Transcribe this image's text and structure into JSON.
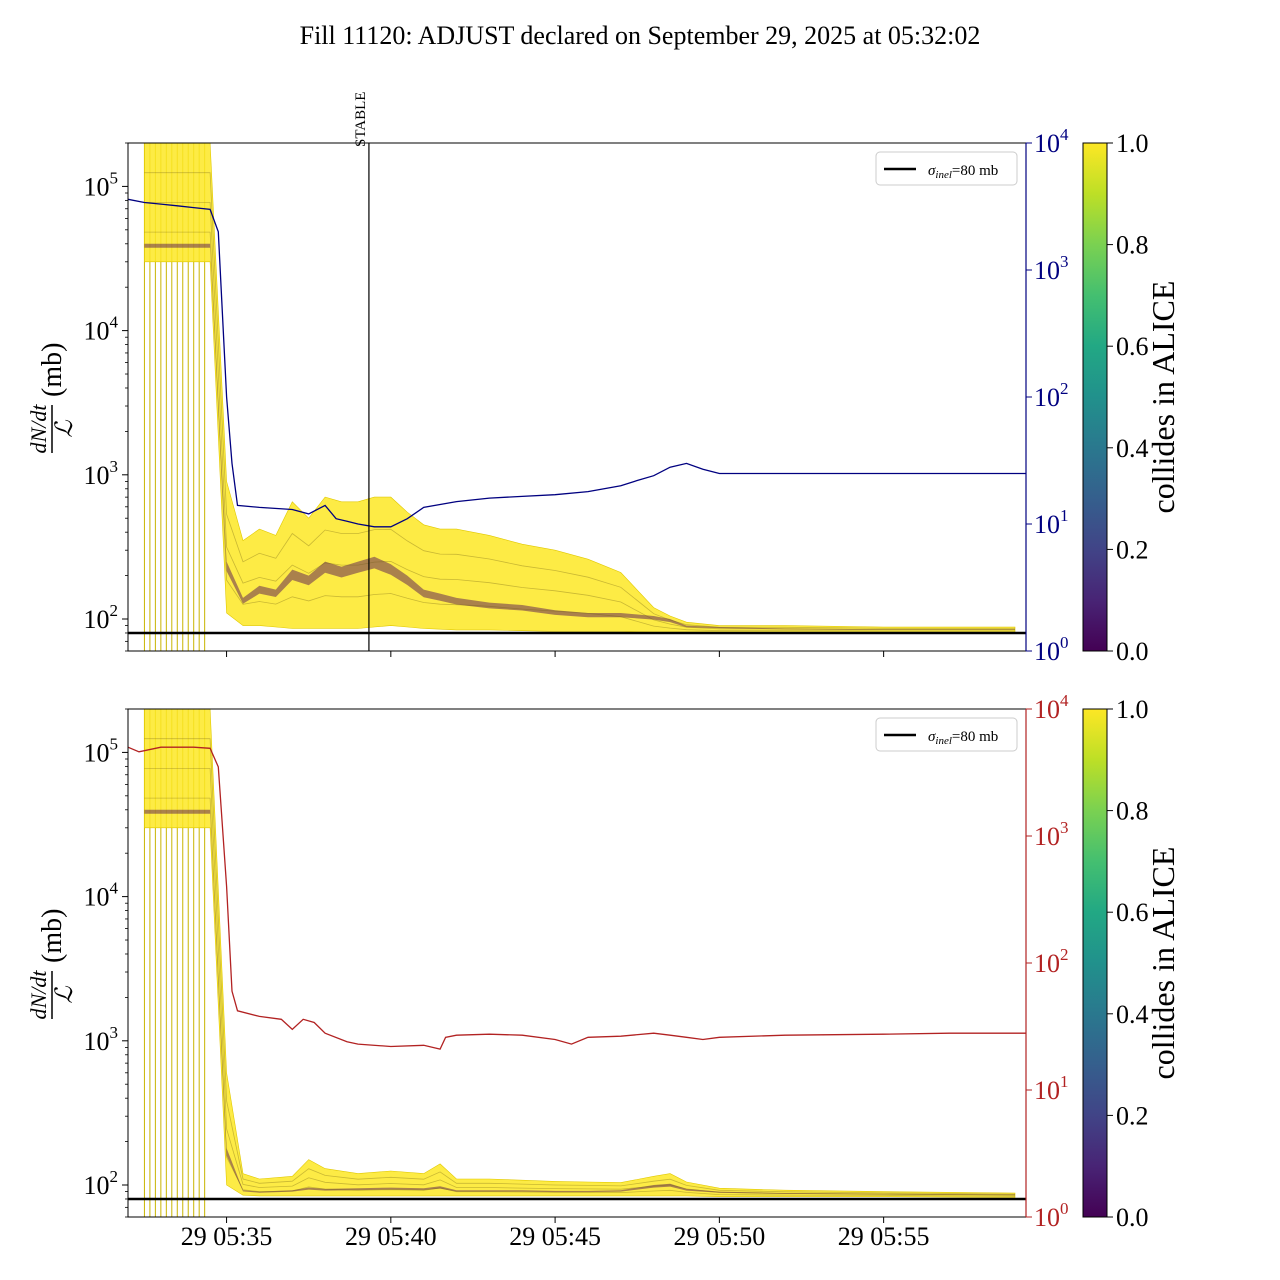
{
  "title": "Fill 11120: ADJUST declared on September 29, 2025 at 05:32:02",
  "colors": {
    "left_series_top": "#000080",
    "left_series_bottom": "#b22222",
    "sigma_line": "#000000",
    "band_high": "#fde725",
    "band_low": "#440154"
  },
  "chart_data": [
    {
      "type": "line",
      "panel": "top",
      "ylabel_left": "dN/dt / ℒ (mb)",
      "ylabel_left_parts": {
        "numerator": "dN/dt",
        "denominator": "ℒ",
        "unit": "(mb)"
      },
      "y_left": {
        "scale": "log",
        "range": [
          60,
          200000
        ],
        "ticks": [
          "10^2",
          "10^3",
          "10^4",
          "10^5"
        ]
      },
      "y_right": {
        "scale": "log",
        "range": [
          1,
          10000
        ],
        "ticks": [
          "10^0",
          "10^1",
          "10^2",
          "10^3",
          "10^4"
        ],
        "color": "#000080"
      },
      "x_range": [
        "05:32:00",
        "05:59:20"
      ],
      "x_ticks": [
        "29 05:35",
        "29 05:40",
        "29 05:45",
        "29 05:50",
        "29 05:55"
      ],
      "x_ticks_visible": false,
      "legend": {
        "position": "top-right",
        "entries": [
          {
            "label": "σinel=80 mb",
            "label_sigma": "σ",
            "label_sub": "inel",
            "label_rest": "=80 mb"
          }
        ]
      },
      "horizontal_line": {
        "label": "σinel=80 mb",
        "y": 80
      },
      "vertical_marker": {
        "label": "STABLE",
        "x": "05:39:20"
      },
      "band": {
        "description": "per-bunch dN/dt/L curves colored by collides in ALICE",
        "x": [
          "05:32:30",
          "05:34:30",
          "05:35:00",
          "05:35:30",
          "05:36:00",
          "05:36:30",
          "05:37:00",
          "05:37:30",
          "05:38:00",
          "05:38:30",
          "05:39:00",
          "05:39:30",
          "05:40:00",
          "05:40:30",
          "05:41:00",
          "05:41:30",
          "05:42:00",
          "05:43:00",
          "05:44:00",
          "05:45:00",
          "05:46:00",
          "05:47:00",
          "05:48:00",
          "05:48:30",
          "05:49:00",
          "05:50:00",
          "05:52:00",
          "05:55:00",
          "05:59:00"
        ],
        "upper": [
          200000,
          200000,
          900,
          350,
          420,
          380,
          650,
          500,
          700,
          650,
          650,
          700,
          700,
          550,
          450,
          420,
          420,
          380,
          330,
          300,
          260,
          210,
          120,
          105,
          95,
          90,
          90,
          88,
          88
        ],
        "lower": [
          30000,
          30000,
          110,
          90,
          90,
          88,
          86,
          86,
          86,
          86,
          86,
          88,
          90,
          88,
          86,
          85,
          84,
          84,
          83,
          82,
          82,
          82,
          81,
          81,
          81,
          81,
          81,
          81,
          81
        ],
        "dark_center": [
          40000,
          40000,
          250,
          140,
          170,
          160,
          220,
          200,
          250,
          230,
          250,
          270,
          240,
          200,
          160,
          150,
          140,
          130,
          125,
          115,
          110,
          110,
          105,
          100,
          90,
          88,
          86,
          85,
          85
        ]
      },
      "colorbar": {
        "label": "collides in ALICE",
        "range": [
          0.0,
          1.0
        ],
        "ticks": [
          "0.0",
          "0.2",
          "0.4",
          "0.6",
          "0.8",
          "1.0"
        ]
      },
      "series": [
        {
          "axis": "right",
          "color": "#000080",
          "x": [
            "05:32:00",
            "05:32:30",
            "05:33:00",
            "05:33:30",
            "05:34:00",
            "05:34:30",
            "05:34:45",
            "05:35:00",
            "05:35:10",
            "05:35:20",
            "05:36:00",
            "05:37:00",
            "05:37:30",
            "05:38:00",
            "05:38:20",
            "05:38:40",
            "05:39:00",
            "05:39:30",
            "05:40:00",
            "05:40:30",
            "05:41:00",
            "05:42:00",
            "05:43:00",
            "05:44:00",
            "05:45:00",
            "05:46:00",
            "05:47:00",
            "05:47:30",
            "05:48:00",
            "05:48:30",
            "05:49:00",
            "05:49:30",
            "05:50:00",
            "05:51:00",
            "05:53:00",
            "05:55:00",
            "05:57:00",
            "05:59:20"
          ],
          "y": [
            3600,
            3400,
            3300,
            3200,
            3100,
            3000,
            2000,
            100,
            30,
            14,
            13.5,
            13,
            12,
            14,
            11,
            10.5,
            10,
            9.5,
            9.5,
            11,
            13.5,
            15,
            16,
            16.5,
            17,
            18,
            20,
            22,
            24,
            28,
            30,
            27,
            25,
            25,
            25,
            25,
            25,
            25
          ]
        }
      ]
    },
    {
      "type": "line",
      "panel": "bottom",
      "ylabel_left": "dN/dt / ℒ (mb)",
      "ylabel_left_parts": {
        "numerator": "dN/dt",
        "denominator": "ℒ",
        "unit": "(mb)"
      },
      "y_left": {
        "scale": "log",
        "range": [
          60,
          200000
        ],
        "ticks": [
          "10^2",
          "10^3",
          "10^4",
          "10^5"
        ]
      },
      "y_right": {
        "scale": "log",
        "range": [
          1,
          10000
        ],
        "ticks": [
          "10^0",
          "10^1",
          "10^2",
          "10^3",
          "10^4"
        ],
        "color": "#b22222"
      },
      "x_range": [
        "05:32:00",
        "05:59:20"
      ],
      "x_ticks": [
        "29 05:35",
        "29 05:40",
        "29 05:45",
        "29 05:50",
        "29 05:55"
      ],
      "legend": {
        "position": "top-right",
        "entries": [
          {
            "label": "σinel=80 mb",
            "label_sigma": "σ",
            "label_sub": "inel",
            "label_rest": "=80 mb"
          }
        ]
      },
      "horizontal_line": {
        "label": "σinel=80 mb",
        "y": 80
      },
      "band": {
        "description": "per-bunch dN/dt/L curves colored by collides in ALICE",
        "x": [
          "05:32:30",
          "05:34:30",
          "05:35:00",
          "05:35:30",
          "05:36:00",
          "05:37:00",
          "05:37:30",
          "05:38:00",
          "05:39:00",
          "05:40:00",
          "05:41:00",
          "05:41:30",
          "05:42:00",
          "05:43:00",
          "05:44:00",
          "05:45:00",
          "05:46:00",
          "05:47:00",
          "05:48:00",
          "05:48:30",
          "05:49:00",
          "05:50:00",
          "05:52:00",
          "05:55:00",
          "05:59:00"
        ],
        "upper": [
          200000,
          200000,
          600,
          120,
          110,
          115,
          150,
          130,
          120,
          125,
          120,
          140,
          110,
          110,
          108,
          106,
          105,
          104,
          115,
          120,
          105,
          95,
          92,
          90,
          88
        ],
        "lower": [
          30000,
          30000,
          100,
          85,
          84,
          84,
          84,
          84,
          84,
          84,
          84,
          84,
          84,
          84,
          84,
          84,
          84,
          84,
          84,
          84,
          84,
          83,
          83,
          83,
          82
        ],
        "dark_center": [
          40000,
          40000,
          180,
          92,
          90,
          92,
          96,
          94,
          95,
          96,
          95,
          98,
          92,
          92,
          92,
          91,
          91,
          92,
          100,
          102,
          94,
          90,
          88,
          87,
          86
        ]
      },
      "colorbar": {
        "label": "collides in ALICE",
        "range": [
          0.0,
          1.0
        ],
        "ticks": [
          "0.0",
          "0.2",
          "0.4",
          "0.6",
          "0.8",
          "1.0"
        ]
      },
      "series": [
        {
          "axis": "right",
          "color": "#b22222",
          "x": [
            "05:32:00",
            "05:32:20",
            "05:33:00",
            "05:33:30",
            "05:34:00",
            "05:34:30",
            "05:34:45",
            "05:35:00",
            "05:35:10",
            "05:35:20",
            "05:36:00",
            "05:36:40",
            "05:37:00",
            "05:37:20",
            "05:37:40",
            "05:38:00",
            "05:38:40",
            "05:39:00",
            "05:40:00",
            "05:41:00",
            "05:41:30",
            "05:41:40",
            "05:42:00",
            "05:43:00",
            "05:44:00",
            "05:45:00",
            "05:45:30",
            "05:46:00",
            "05:47:00",
            "05:48:00",
            "05:48:30",
            "05:49:00",
            "05:49:30",
            "05:50:00",
            "05:52:00",
            "05:55:00",
            "05:57:00",
            "05:59:20"
          ],
          "y": [
            5000,
            4600,
            5000,
            5000,
            5000,
            4900,
            3500,
            400,
            60,
            42,
            38,
            36,
            30,
            36,
            34,
            28,
            24,
            23,
            22,
            22.5,
            21,
            26,
            27,
            27.5,
            27,
            25,
            23,
            26,
            26.5,
            28,
            27,
            26,
            25,
            26,
            27,
            27.5,
            28,
            28
          ]
        }
      ]
    }
  ]
}
